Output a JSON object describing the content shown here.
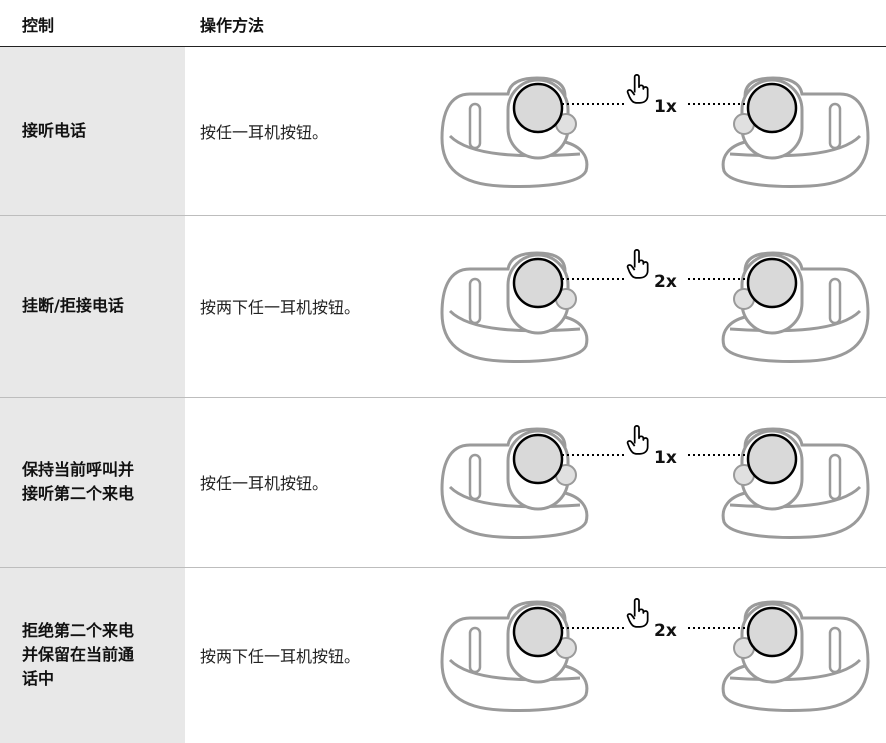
{
  "header": [
    "控制",
    "操作方法"
  ],
  "rows": [
    {
      "control": [
        "接听电话"
      ],
      "method": "按任一耳机按钮。",
      "taps": "1x"
    },
    {
      "control": [
        "挂断/拒接电话"
      ],
      "method": "按两下任一耳机按钮。",
      "taps": "2x"
    },
    {
      "control": [
        "保持当前呼叫并",
        "接听第二个来电"
      ],
      "method": "按任一耳机按钮。",
      "taps": "1x"
    },
    {
      "control": [
        "拒绝第二个来电",
        "并保留在当前通",
        "话中"
      ],
      "method": "按两下任一耳机按钮。",
      "taps": "2x"
    }
  ]
}
